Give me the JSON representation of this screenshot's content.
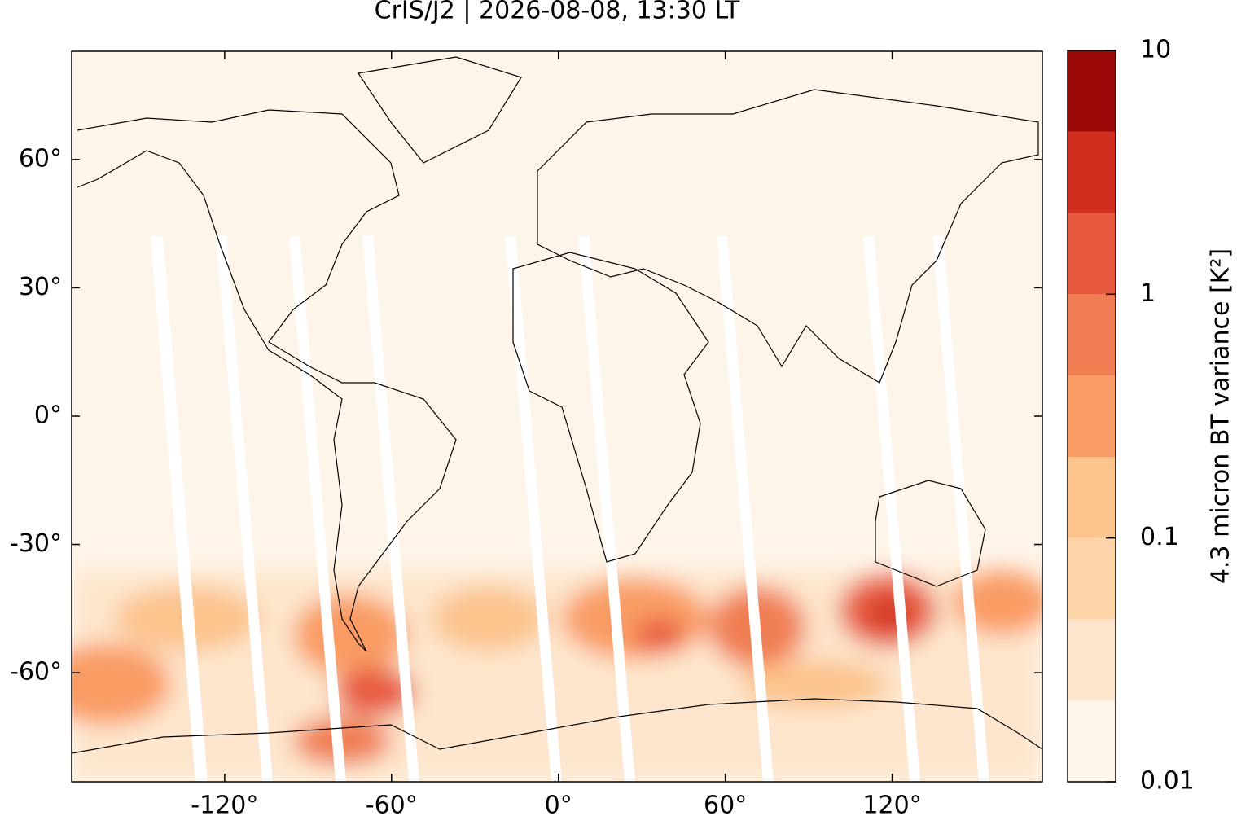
{
  "chart_data": {
    "type": "map",
    "title": "CrIS/J2 | 2026-08-08, 13:30 LT",
    "xlim": [
      -175,
      174
    ],
    "ylim": [
      -85.5,
      85.3
    ],
    "xticks": [
      {
        "value": -120,
        "label": "-120°"
      },
      {
        "value": -60,
        "label": "-60°"
      },
      {
        "value": 0,
        "label": "0°"
      },
      {
        "value": 60,
        "label": "60°"
      },
      {
        "value": 120,
        "label": "120°"
      }
    ],
    "yticks": [
      {
        "value": -60,
        "label": "-60°"
      },
      {
        "value": -30,
        "label": "-30°"
      },
      {
        "value": 0,
        "label": "0°"
      },
      {
        "value": 30,
        "label": "30°"
      },
      {
        "value": 60,
        "label": "60°"
      }
    ],
    "colorbar": {
      "label": "4.3 micron BT variance [K²]",
      "log": true,
      "lim": [
        0.01,
        10
      ],
      "ticks": [
        0.01,
        0.1,
        1,
        10
      ],
      "levels": [
        0.01,
        0.0215,
        0.0464,
        0.1,
        0.215,
        0.464,
        1,
        2.15,
        4.64,
        10
      ],
      "colors": [
        "#fef5ea",
        "#fde6cd",
        "#fdd3a8",
        "#fcc38c",
        "#f99b64",
        "#f07e52",
        "#e75a40",
        "#d02f20",
        "#9b0706"
      ]
    }
  }
}
